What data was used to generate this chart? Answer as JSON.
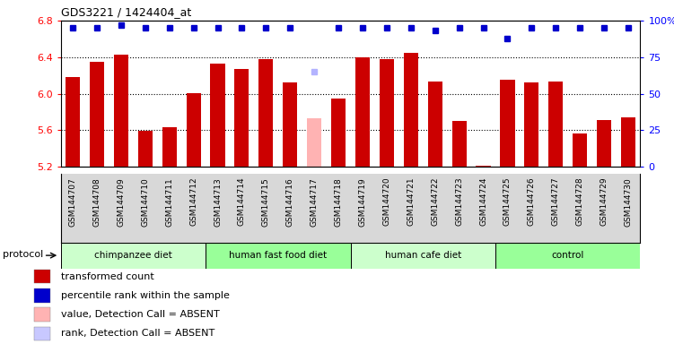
{
  "title": "GDS3221 / 1424404_at",
  "samples": [
    "GSM144707",
    "GSM144708",
    "GSM144709",
    "GSM144710",
    "GSM144711",
    "GSM144712",
    "GSM144713",
    "GSM144714",
    "GSM144715",
    "GSM144716",
    "GSM144717",
    "GSM144718",
    "GSM144719",
    "GSM144720",
    "GSM144721",
    "GSM144722",
    "GSM144723",
    "GSM144724",
    "GSM144725",
    "GSM144726",
    "GSM144727",
    "GSM144728",
    "GSM144729",
    "GSM144730"
  ],
  "bar_values": [
    6.18,
    6.35,
    6.43,
    5.59,
    5.63,
    6.01,
    6.33,
    6.27,
    6.38,
    6.12,
    5.73,
    5.95,
    6.4,
    6.38,
    6.45,
    6.13,
    5.7,
    5.21,
    6.15,
    6.12,
    6.13,
    5.57,
    5.71,
    5.74
  ],
  "bar_colors": [
    "#cc0000",
    "#cc0000",
    "#cc0000",
    "#cc0000",
    "#cc0000",
    "#cc0000",
    "#cc0000",
    "#cc0000",
    "#cc0000",
    "#cc0000",
    "#ffb3b3",
    "#cc0000",
    "#cc0000",
    "#cc0000",
    "#cc0000",
    "#cc0000",
    "#cc0000",
    "#cc0000",
    "#cc0000",
    "#cc0000",
    "#cc0000",
    "#cc0000",
    "#cc0000",
    "#cc0000"
  ],
  "rank_values": [
    95,
    95,
    97,
    95,
    95,
    95,
    95,
    95,
    95,
    95,
    65,
    95,
    95,
    95,
    95,
    93,
    95,
    95,
    88,
    95,
    95,
    95,
    95,
    95
  ],
  "rank_colors": [
    "#0000cc",
    "#0000cc",
    "#0000cc",
    "#0000cc",
    "#0000cc",
    "#0000cc",
    "#0000cc",
    "#0000cc",
    "#0000cc",
    "#0000cc",
    "#b3b3ff",
    "#0000cc",
    "#0000cc",
    "#0000cc",
    "#0000cc",
    "#0000cc",
    "#0000cc",
    "#0000cc",
    "#0000cc",
    "#0000cc",
    "#0000cc",
    "#0000cc",
    "#0000cc",
    "#0000cc"
  ],
  "ylim_left": [
    5.2,
    6.8
  ],
  "ylim_right": [
    0,
    100
  ],
  "yticks_left": [
    5.2,
    5.6,
    6.0,
    6.4,
    6.8
  ],
  "yticks_right": [
    0,
    25,
    50,
    75,
    100
  ],
  "groups": [
    {
      "label": "chimpanzee diet",
      "start": 0,
      "end": 5,
      "color": "#ccffcc"
    },
    {
      "label": "human fast food diet",
      "start": 6,
      "end": 11,
      "color": "#99ff99"
    },
    {
      "label": "human cafe diet",
      "start": 12,
      "end": 17,
      "color": "#ccffcc"
    },
    {
      "label": "control",
      "start": 18,
      "end": 23,
      "color": "#99ff99"
    }
  ],
  "protocol_label": "protocol",
  "legend_items": [
    {
      "color": "#cc0000",
      "label": "transformed count"
    },
    {
      "color": "#0000cc",
      "label": "percentile rank within the sample"
    },
    {
      "color": "#ffb3b3",
      "label": "value, Detection Call = ABSENT"
    },
    {
      "color": "#c8c8ff",
      "label": "rank, Detection Call = ABSENT"
    }
  ],
  "bar_width": 0.6,
  "dotted_lines": [
    5.6,
    6.0,
    6.4
  ],
  "grid_color": "black",
  "bg_xticklabel": "#d8d8d8"
}
